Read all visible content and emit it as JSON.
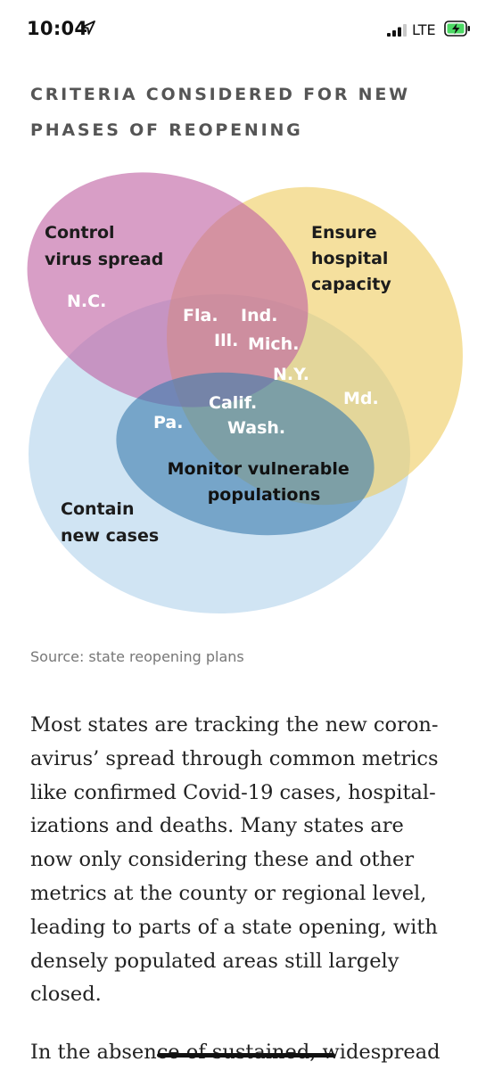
{
  "status_bar": {
    "time": "10:04",
    "network": "LTE",
    "icons": [
      "location-arrow-icon",
      "signal-bars-icon",
      "battery-charging-icon"
    ],
    "battery_color": "#4cd964"
  },
  "graphic": {
    "title": "CRITERIA CONSIDERED FOR NEW PHASES OF REOPENING",
    "title_lines": [
      "CRITERIA CONSIDERED FOR NEW",
      "PHASES OF REOPENING"
    ],
    "sets": [
      {
        "name": "Control virus spread",
        "lines": [
          "Control",
          "virus spread"
        ],
        "color": "#c062a3",
        "states": [
          "N.C."
        ]
      },
      {
        "name": "Ensure hospital capacity",
        "lines": [
          "Ensure",
          "hospital",
          "capacity"
        ],
        "color": "#efcd63",
        "states": [
          "Md."
        ]
      },
      {
        "name": "Contain new cases",
        "lines": [
          "Contain",
          "new cases"
        ],
        "color": "#a9cdea",
        "states": []
      },
      {
        "name": "Monitor vulnerable populations",
        "lines": [
          "Monitor vulnerable",
          "populations"
        ],
        "color": "#3f7eae",
        "states": [
          "Pa."
        ]
      }
    ],
    "overlap_labels": {
      "fla": "Fla.",
      "ind": "Ind.",
      "ill": "Ill.",
      "mich": "Mich.",
      "ny": "N.Y.",
      "calif": "Calif.",
      "wash": "Wash.",
      "pa": "Pa.",
      "md": "Md.",
      "nc": "N.C."
    },
    "source": "Source: state reopening plans"
  },
  "article": {
    "paragraph1_lines": [
      "Most states are tracking the new coron-",
      "avirus’ spread through common metrics",
      "like confirmed Covid-19 cases, hospital-",
      "izations and deaths. Many states are",
      "now only considering these and other",
      "metrics at the county or regional level,",
      "leading to parts of a state opening, with",
      "densely populated areas still largely",
      "closed."
    ],
    "paragraph2_start": "In the absence of sustained, widespread"
  }
}
